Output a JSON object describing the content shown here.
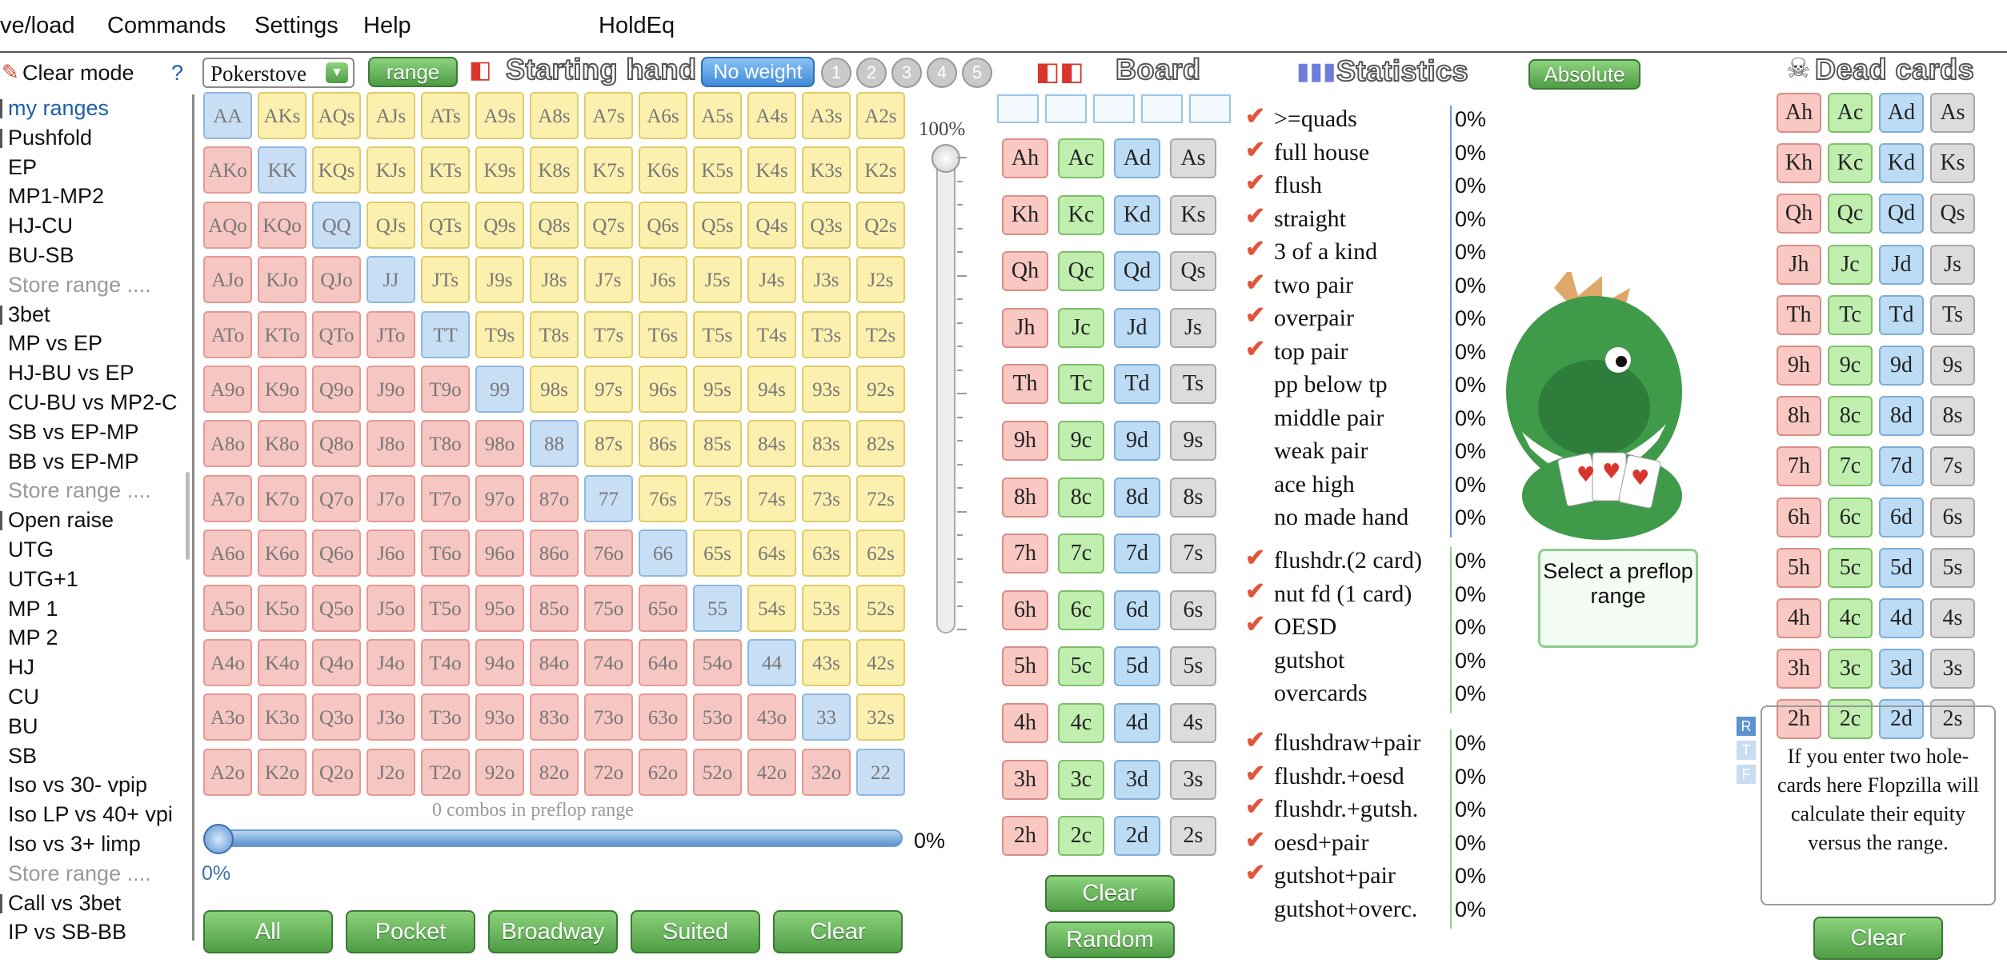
{
  "menu": [
    "ve/load",
    "Commands",
    "Settings",
    "Help",
    "HoldEq"
  ],
  "left_panel": {
    "clear_mode": "Clear mode",
    "help": "?",
    "items": [
      {
        "label": "my ranges",
        "kind": "group",
        "selected": true
      },
      {
        "label": "Pushfold",
        "kind": "group"
      },
      {
        "label": "EP",
        "kind": "sub"
      },
      {
        "label": "MP1-MP2",
        "kind": "sub"
      },
      {
        "label": "HJ-CU",
        "kind": "sub"
      },
      {
        "label": "BU-SB",
        "kind": "sub"
      },
      {
        "label": "Store range ....",
        "kind": "store"
      },
      {
        "label": "3bet",
        "kind": "group"
      },
      {
        "label": "MP vs EP",
        "kind": "sub"
      },
      {
        "label": "HJ-BU vs EP",
        "kind": "sub"
      },
      {
        "label": "CU-BU vs MP2-C",
        "kind": "sub"
      },
      {
        "label": "SB vs EP-MP",
        "kind": "sub"
      },
      {
        "label": "BB vs EP-MP",
        "kind": "sub"
      },
      {
        "label": "Store range ....",
        "kind": "store"
      },
      {
        "label": "Open raise",
        "kind": "group"
      },
      {
        "label": "UTG",
        "kind": "sub"
      },
      {
        "label": "UTG+1",
        "kind": "sub"
      },
      {
        "label": "MP 1",
        "kind": "sub"
      },
      {
        "label": "MP 2",
        "kind": "sub"
      },
      {
        "label": "HJ",
        "kind": "sub"
      },
      {
        "label": "CU",
        "kind": "sub"
      },
      {
        "label": "BU",
        "kind": "sub"
      },
      {
        "label": "SB",
        "kind": "sub"
      },
      {
        "label": "Iso vs 30- vpip",
        "kind": "sub"
      },
      {
        "label": "Iso LP vs 40+ vpi",
        "kind": "sub"
      },
      {
        "label": "Iso vs 3+ limp",
        "kind": "sub"
      },
      {
        "label": "Store range ....",
        "kind": "store"
      },
      {
        "label": "Call vs 3bet",
        "kind": "group"
      },
      {
        "label": "IP vs SB-BB",
        "kind": "sub"
      }
    ]
  },
  "starting_hand": {
    "dropdown_value": "Pokerstove",
    "range_button": "range",
    "title": "Starting hand",
    "no_weight": "No weight",
    "weights": [
      "1",
      "2",
      "3",
      "4",
      "5"
    ],
    "slider_top_label": "100%",
    "combos_label": "0 combos in preflop range",
    "bottom_slider_pct": "0%",
    "bottom_slider_min": "0%",
    "buttons": [
      "All",
      "Pocket",
      "Broadway",
      "Suited",
      "Clear"
    ]
  },
  "matrix_ranks": [
    "A",
    "K",
    "Q",
    "J",
    "T",
    "9",
    "8",
    "7",
    "6",
    "5",
    "4",
    "3",
    "2"
  ],
  "board": {
    "title": "Board",
    "ranks": [
      "A",
      "K",
      "Q",
      "J",
      "T",
      "9",
      "8",
      "7",
      "6",
      "5",
      "4",
      "3",
      "2"
    ],
    "suits": [
      "h",
      "c",
      "d",
      "s"
    ],
    "clear": "Clear",
    "random": "Random"
  },
  "statistics": {
    "title": "Statistics",
    "absolute_button": "Absolute",
    "groups": [
      [
        {
          "label": ">=quads",
          "value": "0%",
          "checked": true
        },
        {
          "label": "full house",
          "value": "0%",
          "checked": true
        },
        {
          "label": "flush",
          "value": "0%",
          "checked": true
        },
        {
          "label": "straight",
          "value": "0%",
          "checked": true
        },
        {
          "label": "3 of a kind",
          "value": "0%",
          "checked": true
        },
        {
          "label": "two pair",
          "value": "0%",
          "checked": true
        },
        {
          "label": "overpair",
          "value": "0%",
          "checked": true
        },
        {
          "label": "top pair",
          "value": "0%",
          "checked": true
        },
        {
          "label": "pp below tp",
          "value": "0%",
          "checked": false
        },
        {
          "label": "middle pair",
          "value": "0%",
          "checked": false
        },
        {
          "label": "weak pair",
          "value": "0%",
          "checked": false
        },
        {
          "label": "ace high",
          "value": "0%",
          "checked": false
        },
        {
          "label": "no made hand",
          "value": "0%",
          "checked": false
        }
      ],
      [
        {
          "label": "flushdr.(2 card)",
          "value": "0%",
          "checked": true
        },
        {
          "label": "nut fd (1 card)",
          "value": "0%",
          "checked": true
        },
        {
          "label": "OESD",
          "value": "0%",
          "checked": true
        },
        {
          "label": "gutshot",
          "value": "0%",
          "checked": false
        },
        {
          "label": "overcards",
          "value": "0%",
          "checked": false
        }
      ],
      [
        {
          "label": "flushdraw+pair",
          "value": "0%",
          "checked": true
        },
        {
          "label": "flushdr.+oesd",
          "value": "0%",
          "checked": true
        },
        {
          "label": "flushdr.+gutsh.",
          "value": "0%",
          "checked": true
        },
        {
          "label": "oesd+pair",
          "value": "0%",
          "checked": true
        },
        {
          "label": "gutshot+pair",
          "value": "0%",
          "checked": true
        },
        {
          "label": "gutshot+overc.",
          "value": "0%",
          "checked": false
        }
      ]
    ],
    "mascot_message": "Select a preflop range"
  },
  "dead_cards": {
    "title": "Dead cards",
    "rtf": [
      "R",
      "T",
      "F"
    ],
    "equity_text": "If you enter two hole-cards here Flopzilla will calculate their equity versus the range.",
    "clear": "Clear"
  },
  "colors": {
    "pair": "#c7def5",
    "suited": "#fbf0ae",
    "offsuit": "#f6c6c2",
    "hearts": "#f9c8c3",
    "clubs": "#bfeeae",
    "diamonds": "#bcdcf5",
    "spades": "#dcdcdc",
    "check": "#e2553b"
  }
}
